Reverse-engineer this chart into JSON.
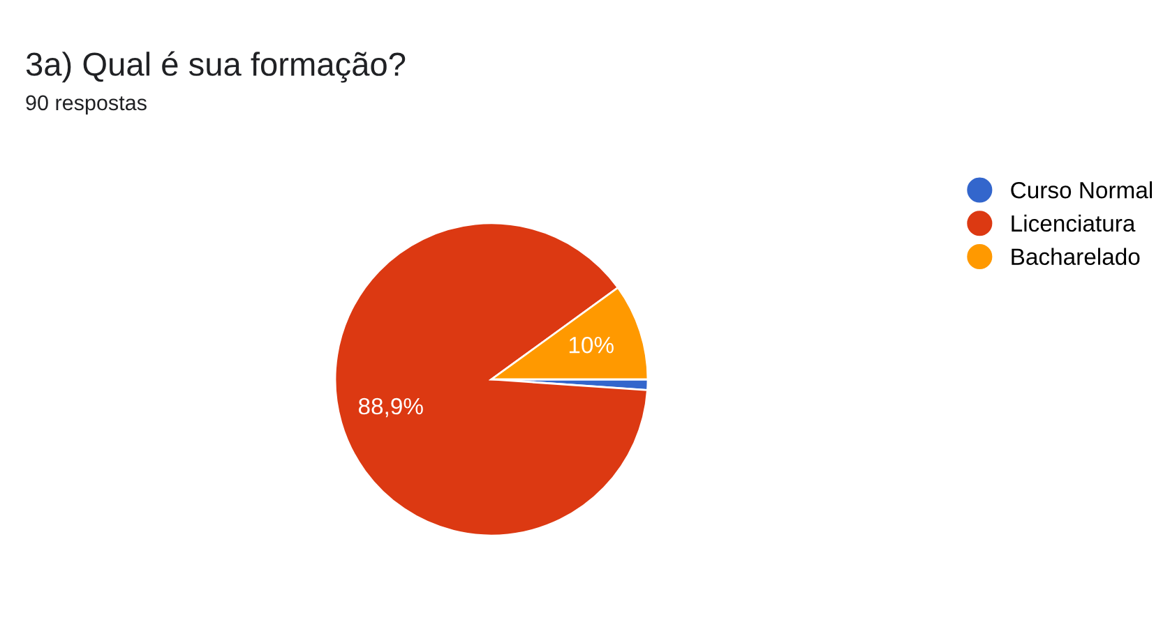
{
  "chart_data": {
    "type": "pie",
    "title": "3a) Qual é sua formação?",
    "subtitle": "90 respostas",
    "categories": [
      "Curso Normal",
      "Licenciatura",
      "Bacharelado"
    ],
    "values": [
      1.1,
      88.9,
      10
    ],
    "colors": [
      "#3366cc",
      "#dc3912",
      "#ff9900"
    ],
    "value_labels": [
      null,
      "88,9%",
      "10%"
    ],
    "legend": "right"
  }
}
